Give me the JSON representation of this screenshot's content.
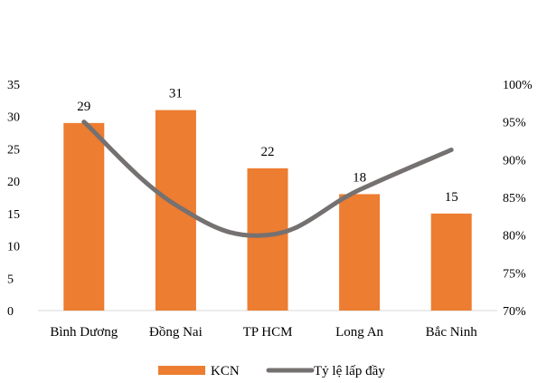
{
  "chart_data": {
    "type": "bar",
    "categories": [
      "Bình Dương",
      "Đồng Nai",
      "TP HCM",
      "Long An",
      "Bắc Ninh"
    ],
    "series": [
      {
        "name": "KCN",
        "type": "bar",
        "axis": "left",
        "color": "#ED7D31",
        "values": [
          29,
          31,
          22,
          18,
          15
        ]
      },
      {
        "name": "Tỷ lệ lấp đầy",
        "type": "line",
        "axis": "right",
        "color": "#767171",
        "values": [
          95,
          84,
          80,
          86,
          91.3
        ]
      }
    ],
    "y_left": {
      "range": [
        0,
        35
      ],
      "ticks": [
        "0",
        "5",
        "10",
        "15",
        "20",
        "25",
        "30",
        "35"
      ]
    },
    "y_right": {
      "range": [
        70,
        100
      ],
      "ticks": [
        "70%",
        "75%",
        "80%",
        "85%",
        "90%",
        "95%",
        "100%"
      ]
    },
    "data_labels": [
      "29",
      "31",
      "22",
      "18",
      "15"
    ],
    "legend": {
      "position": "bottom"
    },
    "grid": false
  }
}
